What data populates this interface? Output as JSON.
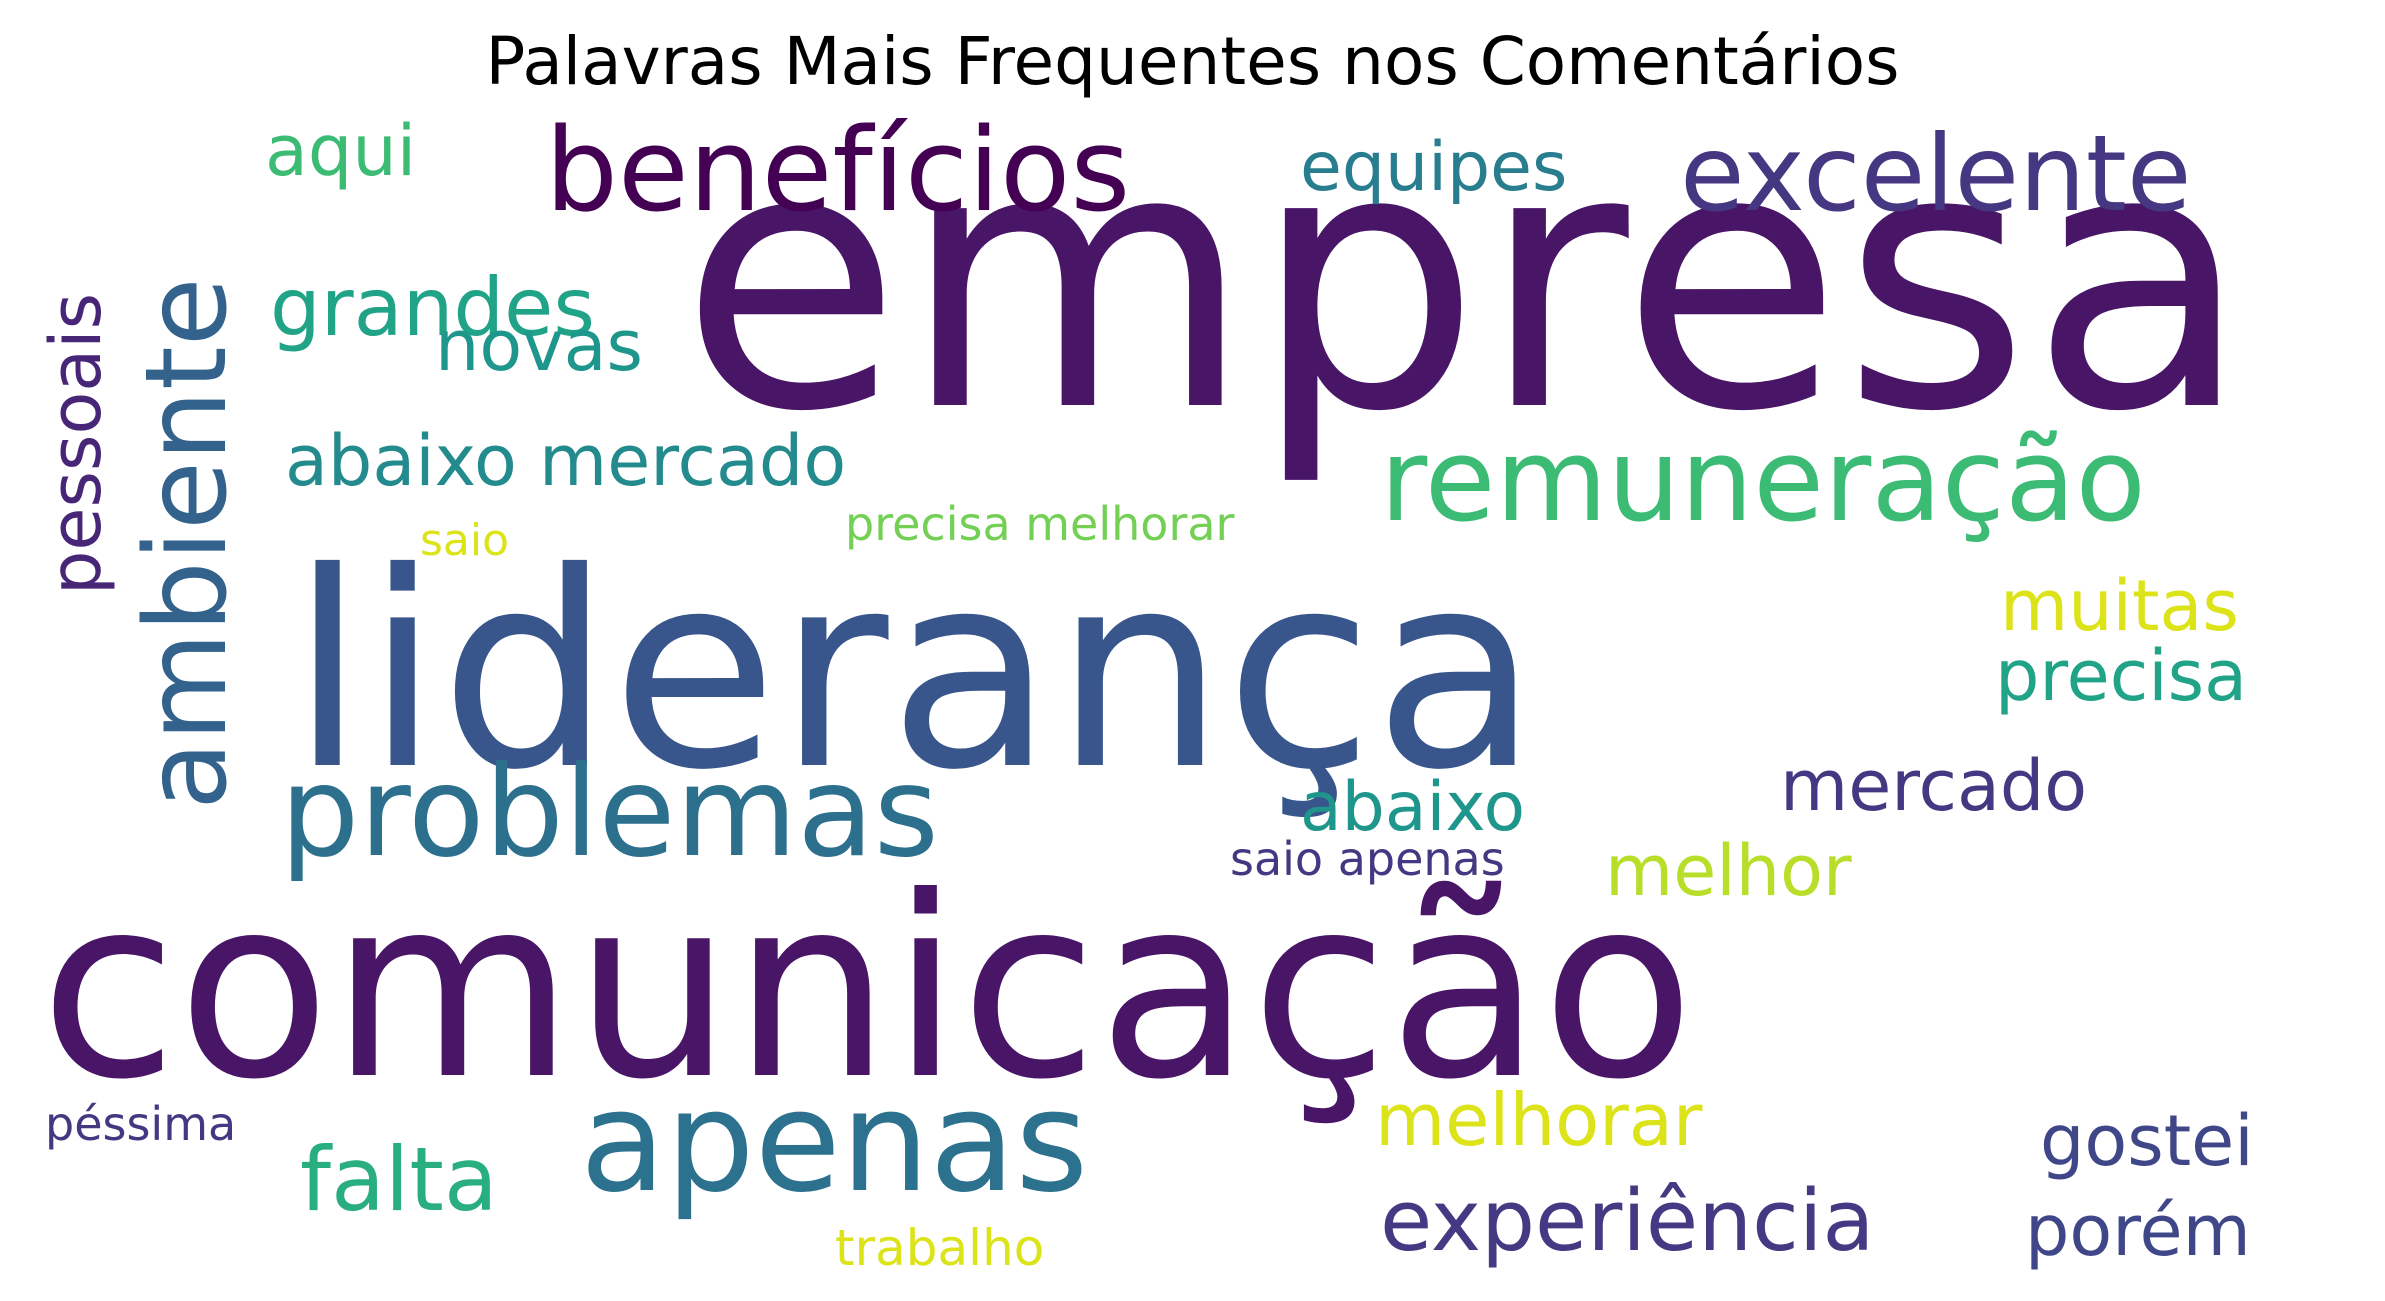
{
  "title": "Palavras Mais Frequentes nos Comentários",
  "words": [
    {
      "text": "empresa",
      "weight": 100,
      "color": "#481567"
    },
    {
      "text": "comunicação",
      "weight": 98,
      "color": "#481567"
    },
    {
      "text": "liderança",
      "weight": 96,
      "color": "#39568c"
    },
    {
      "text": "apenas",
      "weight": 62,
      "color": "#2c728e"
    },
    {
      "text": "benefícios",
      "weight": 42,
      "color": "#440154"
    },
    {
      "text": "excelente",
      "weight": 40,
      "color": "#453781"
    },
    {
      "text": "remuneração",
      "weight": 40,
      "color": "#3cbb75"
    },
    {
      "text": "problemas",
      "weight": 38,
      "color": "#2d708e"
    },
    {
      "text": "ambiente",
      "weight": 38,
      "color": "#33638d"
    },
    {
      "text": "experiência",
      "weight": 26,
      "color": "#443a83"
    },
    {
      "text": "falta",
      "weight": 25,
      "color": "#29af7f"
    },
    {
      "text": "grandes",
      "weight": 24,
      "color": "#20a386"
    },
    {
      "text": "abaixo mercado",
      "weight": 22,
      "color": "#238a8d"
    },
    {
      "text": "equipes",
      "weight": 22,
      "color": "#287d8e"
    },
    {
      "text": "pessoais",
      "weight": 22,
      "color": "#482677"
    },
    {
      "text": "aqui",
      "weight": 22,
      "color": "#3cbb75"
    },
    {
      "text": "melhorar",
      "weight": 22,
      "color": "#dce319"
    },
    {
      "text": "gostei",
      "weight": 22,
      "color": "#404788"
    },
    {
      "text": "precisa",
      "weight": 21,
      "color": "#20a386"
    },
    {
      "text": "mercado",
      "weight": 21,
      "color": "#453781"
    },
    {
      "text": "porém",
      "weight": 21,
      "color": "#404788"
    },
    {
      "text": "novas",
      "weight": 21,
      "color": "#1f968b"
    },
    {
      "text": "abaixo",
      "weight": 21,
      "color": "#1f968b"
    },
    {
      "text": "melhor",
      "weight": 21,
      "color": "#b8de29"
    },
    {
      "text": "muitas",
      "weight": 21,
      "color": "#dce319"
    },
    {
      "text": "precisa melhorar",
      "weight": 14,
      "color": "#73d055"
    },
    {
      "text": "saio apenas",
      "weight": 14,
      "color": "#453781"
    },
    {
      "text": "trabalho",
      "weight": 14,
      "color": "#dce319"
    },
    {
      "text": "péssima",
      "weight": 13,
      "color": "#453781"
    },
    {
      "text": "saio",
      "weight": 13,
      "color": "#dce319"
    }
  ]
}
